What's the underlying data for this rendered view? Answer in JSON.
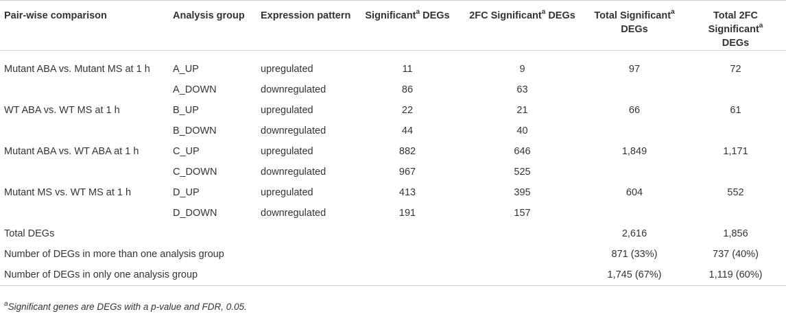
{
  "headers": {
    "col1": "Pair-wise comparison",
    "col2": "Analysis group",
    "col3": "Expression pattern",
    "col4_main": "Significant",
    "col4_sup": "a",
    "col4_tail": " DEGs",
    "col5_main": "2FC Significant",
    "col5_sup": "a",
    "col5_tail": " DEGs",
    "col6_line1_main": "Total Significant",
    "col6_sup": "a",
    "col6_line2": "DEGs",
    "col7_line1": "Total 2FC",
    "col7_line2_main": "Significant",
    "col7_sup": "a",
    "col7_line3": "DEGs"
  },
  "rows": [
    {
      "comparison": "Mutant ABA vs. Mutant MS at 1 h",
      "group": "A_UP",
      "pattern": "upregulated",
      "sig": "11",
      "fc": "9",
      "total_sig": "97",
      "total_fc": "72"
    },
    {
      "comparison": "",
      "group": "A_DOWN",
      "pattern": "downregulated",
      "sig": "86",
      "fc": "63",
      "total_sig": "",
      "total_fc": ""
    },
    {
      "comparison": "WT ABA vs. WT MS at 1 h",
      "group": "B_UP",
      "pattern": "upregulated",
      "sig": "22",
      "fc": "21",
      "total_sig": "66",
      "total_fc": "61"
    },
    {
      "comparison": "",
      "group": "B_DOWN",
      "pattern": "downregulated",
      "sig": "44",
      "fc": "40",
      "total_sig": "",
      "total_fc": ""
    },
    {
      "comparison": "Mutant ABA vs. WT ABA at 1 h",
      "group": "C_UP",
      "pattern": "upregulated",
      "sig": "882",
      "fc": "646",
      "total_sig": "1,849",
      "total_fc": "1,171"
    },
    {
      "comparison": "",
      "group": "C_DOWN",
      "pattern": "downregulated",
      "sig": "967",
      "fc": "525",
      "total_sig": "",
      "total_fc": ""
    },
    {
      "comparison": "Mutant MS vs. WT MS at 1 h",
      "group": "D_UP",
      "pattern": "upregulated",
      "sig": "413",
      "fc": "395",
      "total_sig": "604",
      "total_fc": "552"
    },
    {
      "comparison": "",
      "group": "D_DOWN",
      "pattern": "downregulated",
      "sig": "191",
      "fc": "157",
      "total_sig": "",
      "total_fc": ""
    }
  ],
  "summary": [
    {
      "label": "Total DEGs",
      "total_sig": "2,616",
      "total_fc": "1,856"
    },
    {
      "label": "Number of DEGs in more than one analysis group",
      "total_sig": "871 (33%)",
      "total_fc": "737 (40%)"
    },
    {
      "label": "Number of DEGs in only one analysis group",
      "total_sig": "1,745 (67%)",
      "total_fc": "1,119 (60%)"
    }
  ],
  "footnote": {
    "sup": "a",
    "text": "Significant genes are DEGs with a p-value and FDR, 0.05."
  }
}
